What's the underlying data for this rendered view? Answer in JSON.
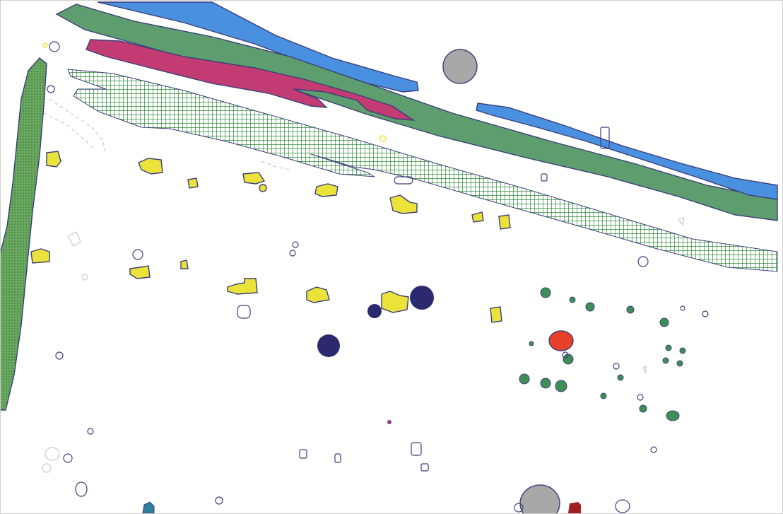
{
  "plan": {
    "colors": {
      "background": "#ffffff",
      "outline": "#3a3f7a",
      "blue_channel": "#4a90e0",
      "green_band": "#5e9e6e",
      "magenta_band": "#c23b73",
      "hatch_green": "#2f8a3a",
      "hatched_left": "#6aa860",
      "yellow_feature": "#ece33a",
      "navy_pit": "#2b2a6e",
      "green_posthole": "#3f8f55",
      "red_feature": "#e8412a",
      "grey_stone": "#a8a8a8",
      "teal_feature": "#2f7f9f",
      "dark_red_feature": "#a02020",
      "purple_dot": "#8a3a7a",
      "faint_outline": "#c8c8d8"
    }
  }
}
